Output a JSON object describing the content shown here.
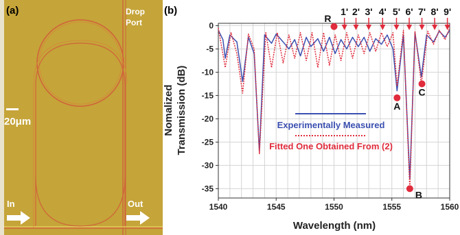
{
  "micrograph": {
    "panel_label": "(a)",
    "drop_port": [
      "Drop",
      "Port"
    ],
    "scale_bar": "20μm",
    "in_label": "In",
    "out_label": "Out",
    "colors": {
      "background": "#c5a439",
      "waveguide": "#d0643a",
      "arrow": "#ffffff"
    }
  },
  "chart_data": {
    "type": "line",
    "panel_label": "(b)",
    "xlabel": "Wavelength (nm)",
    "ylabel": [
      "Nomalized",
      "Transmission (dB)"
    ],
    "xlim": [
      1540,
      1560
    ],
    "ylim": [
      -37,
      0.5
    ],
    "xticks": [
      1540,
      1545,
      1550,
      1555,
      1560
    ],
    "yticks": [
      0,
      -5,
      -10,
      -15,
      -20,
      -25,
      -30,
      -35
    ],
    "grid": true,
    "series": [
      {
        "name": "Experimentally Measured",
        "color": "#3a4fb0",
        "style": "solid",
        "x": [
          1540.0,
          1540.4,
          1540.6,
          1541.0,
          1541.6,
          1542.1,
          1542.6,
          1543.1,
          1543.55,
          1544.0,
          1544.6,
          1545.0,
          1545.6,
          1546.1,
          1546.6,
          1547.1,
          1547.6,
          1548.0,
          1548.6,
          1549.1,
          1549.6,
          1550.1,
          1550.6,
          1551.1,
          1551.6,
          1552.1,
          1552.6,
          1553.1,
          1553.6,
          1554.1,
          1554.6,
          1555.1,
          1555.45,
          1556.0,
          1556.55,
          1557.0,
          1557.55,
          1558.0,
          1558.6,
          1559.1,
          1559.6,
          1560.0
        ],
        "y": [
          -1.0,
          -3.0,
          -7.0,
          -2.0,
          -3.5,
          -12.0,
          -2.5,
          -6.0,
          -27.0,
          -2.0,
          -3.8,
          -1.8,
          -3.5,
          -5.0,
          -3.0,
          -6.5,
          -2.5,
          -4.5,
          -2.8,
          -5.5,
          -2.5,
          -6.0,
          -3.0,
          -5.0,
          -2.5,
          -4.5,
          -2.5,
          -5.5,
          -2.8,
          -4.0,
          -2.0,
          -5.0,
          -14.0,
          -2.0,
          -33.0,
          -1.5,
          -11.0,
          -2.0,
          -3.5,
          -1.2,
          -2.5,
          -1.0
        ]
      },
      {
        "name": "Fitted One Obtained From (2)",
        "color": "#e02c3c",
        "style": "dotted",
        "x": [
          1540.0,
          1540.6,
          1541.1,
          1541.6,
          1542.1,
          1542.6,
          1543.1,
          1543.55,
          1544.1,
          1544.6,
          1545.1,
          1545.6,
          1546.1,
          1546.6,
          1547.1,
          1547.6,
          1548.1,
          1548.6,
          1549.1,
          1549.6,
          1550.1,
          1550.6,
          1551.1,
          1551.6,
          1552.1,
          1552.6,
          1553.1,
          1553.6,
          1554.1,
          1554.6,
          1555.1,
          1555.45,
          1556.0,
          1556.55,
          1557.0,
          1557.55,
          1558.1,
          1558.6,
          1559.1,
          1559.6,
          1560.0
        ],
        "y": [
          -0.5,
          -9.0,
          -1.5,
          -6.0,
          -14.5,
          -1.8,
          -5.0,
          -27.5,
          -1.5,
          -9.0,
          -1.5,
          -8.0,
          -2.0,
          -7.0,
          -1.5,
          -7.5,
          -1.5,
          -9.0,
          -1.5,
          -8.5,
          -2.0,
          -7.5,
          -1.5,
          -7.0,
          -2.0,
          -6.0,
          -1.5,
          -5.5,
          -1.5,
          -4.5,
          -1.5,
          -13.0,
          -1.0,
          -35.0,
          -1.2,
          -12.5,
          -1.2,
          -4.0,
          -1.0,
          -3.0,
          -0.5
        ]
      }
    ],
    "legend_position": "center",
    "annotations": {
      "resonance_labels": [
        "1'",
        "2'",
        "3'",
        "4'",
        "5'",
        "6'",
        "7'",
        "8'",
        "9'"
      ],
      "resonance_x": [
        1550.9,
        1551.9,
        1553.0,
        1554.2,
        1555.4,
        1556.5,
        1557.6,
        1558.7,
        1559.8
      ],
      "points": [
        {
          "label": "R",
          "x": 1550.0,
          "y": -0.2
        },
        {
          "label": "A",
          "x": 1555.45,
          "y": -15.5
        },
        {
          "label": "B",
          "x": 1556.55,
          "y": -35.0
        },
        {
          "label": "C",
          "x": 1557.6,
          "y": -12.5
        }
      ]
    }
  }
}
